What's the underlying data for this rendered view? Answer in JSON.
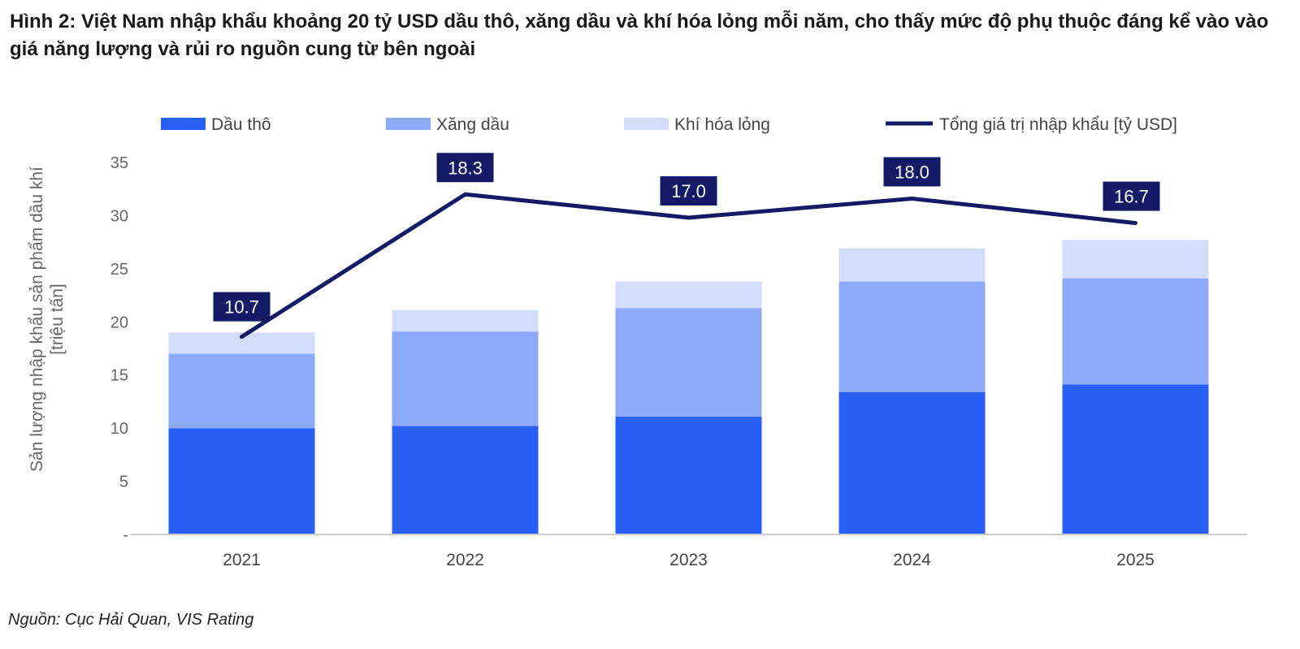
{
  "title": "Hình 2: Việt Nam nhập khẩu khoảng 20 tỷ USD dầu thô, xăng dầu và khí hóa lỏng mỗi năm, cho thấy mức độ phụ thuộc đáng kể vào vào giá năng lượng và rủi ro nguồn cung từ bên ngoài",
  "source": "Nguồn: Cục Hải Quan, VIS Rating",
  "colors": {
    "crude": "#2a5ff5",
    "gasoline": "#8caaf7",
    "lng": "#d3dcfa",
    "line": "#141a66",
    "label_box": "#141a66",
    "label_text": "#ffffff",
    "axis": "#666666",
    "baseline": "#cccccc"
  },
  "chart_data": {
    "type": "bar",
    "stacked": true,
    "categories": [
      "2021",
      "2022",
      "2023",
      "2024",
      "2025"
    ],
    "series": [
      {
        "name": "Dầu thô",
        "kind": "bar",
        "color_key": "crude",
        "values": [
          10.0,
          10.2,
          11.1,
          13.4,
          14.1
        ]
      },
      {
        "name": "Xăng dầu",
        "kind": "bar",
        "color_key": "gasoline",
        "values": [
          7.0,
          8.9,
          10.2,
          10.4,
          10.0
        ]
      },
      {
        "name": "Khí hóa lỏng",
        "kind": "bar",
        "color_key": "lng",
        "values": [
          2.0,
          2.0,
          2.5,
          3.1,
          3.6
        ]
      },
      {
        "name": "Tổng giá trị nhập khẩu [tỷ USD]",
        "kind": "line",
        "color_key": "line",
        "values": [
          10.7,
          18.3,
          17.0,
          18.0,
          16.7
        ],
        "labels": [
          "10.7",
          "18.3",
          "17.0",
          "18.0",
          "16.7"
        ],
        "plot_left_axis": [
          18.6,
          32.0,
          29.8,
          31.6,
          29.3
        ]
      }
    ],
    "ylabel": "Sản lượng nhập khẩu sản phẩm dầu khí [triệu tấn]",
    "ylabel_lines": [
      "Sản lượng nhập khẩu sản phẩm dầu khí",
      "[triệu tấn]"
    ],
    "ylim": [
      0,
      35
    ],
    "yticks": [
      0,
      5,
      10,
      15,
      20,
      25,
      30,
      35
    ],
    "ytick_labels": [
      "-",
      "5",
      "10",
      "15",
      "20",
      "25",
      "30",
      "35"
    ],
    "legend_position": "top",
    "grid": false
  }
}
